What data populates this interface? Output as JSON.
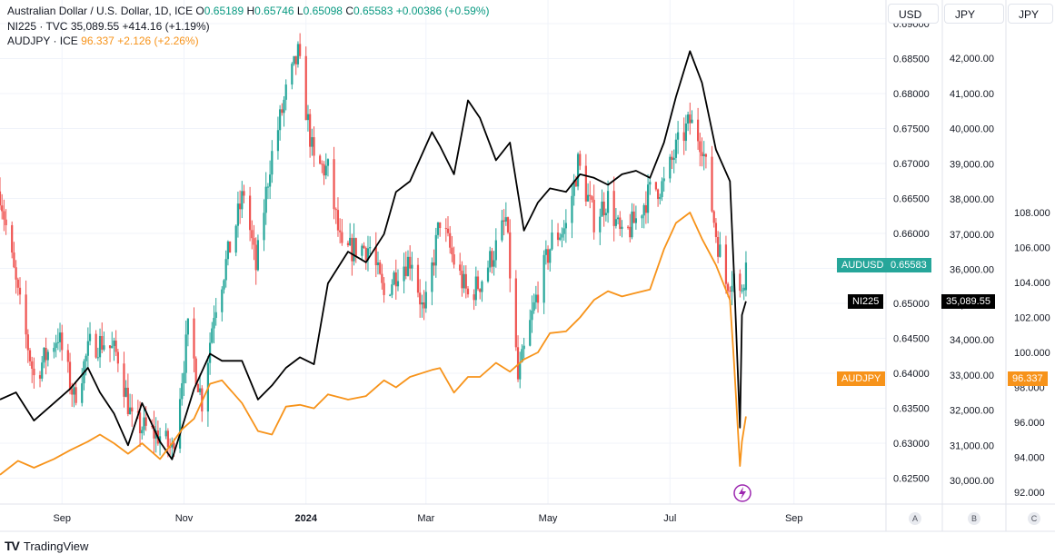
{
  "legend": {
    "main": {
      "name": "Australian Dollar / U.S. Dollar, 1D, ICE",
      "o_label": "O",
      "o": "0.65189",
      "h_label": "H",
      "h": "0.65746",
      "l_label": "L",
      "l": "0.65098",
      "c_label": "C",
      "c": "0.65583",
      "chg": "+0.00386 (+0.59%)"
    },
    "s2": {
      "name": "NI225 · TVC",
      "value": "35,089.55",
      "chg": "+414.16 (+1.19%)"
    },
    "s3": {
      "name": "AUDJPY · ICE",
      "value": "96.337",
      "chg": "+2.126 (+2.26%)"
    }
  },
  "axes": {
    "usd_label": "USD",
    "jpy1_label": "JPY",
    "jpy2_label": "JPY",
    "scale_buttons": [
      "A",
      "B",
      "C"
    ]
  },
  "badges": {
    "audusd_name": "AUDUSD",
    "audusd_value": "0.65583",
    "ni225_name": "NI225",
    "ni225_value": "35,089.55",
    "audjpy_name": "AUDJPY",
    "audjpy_value": "96.337"
  },
  "footer": {
    "logo": "TV",
    "brand": "TradingView"
  },
  "colors": {
    "up": "#26a69a",
    "down": "#ef5350",
    "ni225": "#000000",
    "audjpy": "#f7931a",
    "grid": "#f0f3fa",
    "accent": "#9c27b0"
  },
  "chart_data": {
    "type": "candlestick+line",
    "title": "Australian Dollar / U.S. Dollar, 1D, ICE",
    "x_ticks": [
      "Sep",
      "Nov",
      "2024",
      "Mar",
      "May",
      "Jul",
      "Sep"
    ],
    "x_tick_dates": [
      "2023-09-01",
      "2023-11-01",
      "2024-01-01",
      "2024-03-01",
      "2024-05-01",
      "2024-07-01",
      "2024-09-01"
    ],
    "x_range": [
      "2023-08-01",
      "2024-10-17"
    ],
    "y_axis_usd": {
      "ticks": [
        0.625,
        0.63,
        0.635,
        0.64,
        0.645,
        0.65,
        0.655,
        0.66,
        0.665,
        0.67,
        0.675,
        0.68,
        0.685,
        0.69
      ],
      "labels": [
        "0.62500",
        "0.63000",
        "0.63500",
        "0.64000",
        "0.64500",
        "0.65000",
        "0.65500",
        "0.66000",
        "0.66500",
        "0.67000",
        "0.67500",
        "0.68000",
        "0.68500",
        "0.69000"
      ]
    },
    "y_axis_nikkei": {
      "ticks": [
        30000,
        31000,
        32000,
        33000,
        34000,
        35000,
        36000,
        37000,
        38000,
        39000,
        40000,
        41000,
        42000
      ],
      "labels": [
        "30,000.00",
        "31,000.00",
        "32,000.00",
        "33,000.00",
        "34,000.00",
        "35,000.00",
        "36,000.00",
        "37,000.00",
        "38,000.00",
        "39,000.00",
        "40,000.00",
        "41,000.00",
        "42,000.00"
      ]
    },
    "y_axis_jpy": {
      "ticks": [
        92,
        94,
        96,
        98,
        100,
        102,
        104,
        106,
        108
      ],
      "labels": [
        "92.000",
        "94.000",
        "96.000",
        "98.000",
        "100.000",
        "102.000",
        "104.000",
        "106.000",
        "108.000"
      ]
    },
    "audusd_anchors": [
      [
        "2023-08-01",
        0.666
      ],
      [
        "2023-08-10",
        0.651
      ],
      [
        "2023-08-18",
        0.6395
      ],
      [
        "2023-08-30",
        0.6455
      ],
      [
        "2023-09-07",
        0.6365
      ],
      [
        "2023-09-15",
        0.644
      ],
      [
        "2023-09-22",
        0.6445
      ],
      [
        "2023-09-29",
        0.6425
      ],
      [
        "2023-10-06",
        0.633
      ],
      [
        "2023-10-13",
        0.632
      ],
      [
        "2023-10-20",
        0.631
      ],
      [
        "2023-10-26",
        0.629
      ],
      [
        "2023-11-03",
        0.646
      ],
      [
        "2023-11-10",
        0.636
      ],
      [
        "2023-11-16",
        0.649
      ],
      [
        "2023-11-24",
        0.658
      ],
      [
        "2023-12-01",
        0.666
      ],
      [
        "2023-12-07",
        0.655
      ],
      [
        "2023-12-14",
        0.67
      ],
      [
        "2023-12-22",
        0.68
      ],
      [
        "2023-12-28",
        0.6855
      ],
      [
        "2024-01-05",
        0.67
      ],
      [
        "2024-01-12",
        0.669
      ],
      [
        "2024-01-19",
        0.657
      ],
      [
        "2024-01-26",
        0.658
      ],
      [
        "2024-02-02",
        0.658
      ],
      [
        "2024-02-09",
        0.651
      ],
      [
        "2024-02-16",
        0.655
      ],
      [
        "2024-02-23",
        0.6565
      ],
      [
        "2024-02-29",
        0.648
      ],
      [
        "2024-03-08",
        0.662
      ],
      [
        "2024-03-15",
        0.656
      ],
      [
        "2024-03-22",
        0.651
      ],
      [
        "2024-03-28",
        0.653
      ],
      [
        "2024-04-05",
        0.658
      ],
      [
        "2024-04-10",
        0.662
      ],
      [
        "2024-04-16",
        0.639
      ],
      [
        "2024-04-19",
        0.643
      ],
      [
        "2024-04-26",
        0.652
      ],
      [
        "2024-05-03",
        0.659
      ],
      [
        "2024-05-10",
        0.661
      ],
      [
        "2024-05-16",
        0.67
      ],
      [
        "2024-05-24",
        0.662
      ],
      [
        "2024-05-31",
        0.665
      ],
      [
        "2024-06-07",
        0.659
      ],
      [
        "2024-06-14",
        0.662
      ],
      [
        "2024-06-21",
        0.666
      ],
      [
        "2024-06-28",
        0.667
      ],
      [
        "2024-07-04",
        0.672
      ],
      [
        "2024-07-11",
        0.676
      ],
      [
        "2024-07-17",
        0.673
      ],
      [
        "2024-07-24",
        0.66
      ],
      [
        "2024-07-29",
        0.653
      ],
      [
        "2024-08-02",
        0.654
      ],
      [
        "2024-08-05",
        0.651
      ],
      [
        "2024-08-08",
        0.6558
      ]
    ],
    "series": [
      {
        "name": "NI225",
        "axis": "nikkei",
        "x": [
          "2023-08-01",
          "2023-08-09",
          "2023-08-18",
          "2023-08-28",
          "2023-09-05",
          "2023-09-14",
          "2023-09-20",
          "2023-09-27",
          "2023-10-04",
          "2023-10-11",
          "2023-10-20",
          "2023-10-26",
          "2023-10-31",
          "2023-11-06",
          "2023-11-14",
          "2023-11-20",
          "2023-11-30",
          "2023-12-08",
          "2023-12-15",
          "2023-12-22",
          "2023-12-29",
          "2024-01-05",
          "2024-01-12",
          "2024-01-22",
          "2024-01-31",
          "2024-02-09",
          "2024-02-15",
          "2024-02-22",
          "2024-03-04",
          "2024-03-08",
          "2024-03-15",
          "2024-03-22",
          "2024-03-28",
          "2024-04-05",
          "2024-04-12",
          "2024-04-19",
          "2024-04-26",
          "2024-05-02",
          "2024-05-10",
          "2024-05-17",
          "2024-05-24",
          "2024-05-31",
          "2024-06-07",
          "2024-06-14",
          "2024-06-21",
          "2024-06-28",
          "2024-07-04",
          "2024-07-11",
          "2024-07-17",
          "2024-07-24",
          "2024-07-31",
          "2024-08-02",
          "2024-08-05",
          "2024-08-06",
          "2024-08-08"
        ],
        "values": [
          32300,
          32500,
          31700,
          32200,
          32600,
          33200,
          32500,
          31900,
          31000,
          32200,
          31100,
          30600,
          31500,
          32600,
          33600,
          33400,
          33400,
          32300,
          32700,
          33200,
          33500,
          33300,
          35600,
          36500,
          36200,
          37000,
          38200,
          38500,
          39900,
          39500,
          38700,
          40800,
          40300,
          39100,
          39600,
          37100,
          37900,
          38300,
          38200,
          38700,
          38600,
          38400,
          38700,
          38800,
          38600,
          39600,
          40900,
          42200,
          41300,
          39400,
          38500,
          35900,
          31500,
          34700,
          35089.55
        ]
      },
      {
        "name": "AUDJPY",
        "axis": "jpy",
        "x": [
          "2023-08-01",
          "2023-08-10",
          "2023-08-18",
          "2023-08-28",
          "2023-09-05",
          "2023-09-14",
          "2023-09-20",
          "2023-09-27",
          "2023-10-04",
          "2023-10-11",
          "2023-10-20",
          "2023-10-26",
          "2023-10-31",
          "2023-11-06",
          "2023-11-14",
          "2023-11-20",
          "2023-11-30",
          "2023-12-08",
          "2023-12-15",
          "2023-12-22",
          "2023-12-29",
          "2024-01-05",
          "2024-01-12",
          "2024-01-22",
          "2024-01-31",
          "2024-02-09",
          "2024-02-15",
          "2024-02-22",
          "2024-03-04",
          "2024-03-08",
          "2024-03-15",
          "2024-03-22",
          "2024-03-28",
          "2024-04-05",
          "2024-04-12",
          "2024-04-19",
          "2024-04-26",
          "2024-05-02",
          "2024-05-10",
          "2024-05-17",
          "2024-05-24",
          "2024-05-31",
          "2024-06-07",
          "2024-06-14",
          "2024-06-21",
          "2024-06-28",
          "2024-07-04",
          "2024-07-11",
          "2024-07-17",
          "2024-07-24",
          "2024-07-31",
          "2024-08-02",
          "2024-08-05",
          "2024-08-06",
          "2024-08-08"
        ],
        "values": [
          93.0,
          93.8,
          93.4,
          93.9,
          94.4,
          94.9,
          95.3,
          94.8,
          94.2,
          94.8,
          93.9,
          94.8,
          95.6,
          96.2,
          98.2,
          98.4,
          97.1,
          95.5,
          95.3,
          96.9,
          97.0,
          96.8,
          97.6,
          97.3,
          97.5,
          98.4,
          98.0,
          98.6,
          99.0,
          99.1,
          97.7,
          98.6,
          98.6,
          99.4,
          98.9,
          99.6,
          100.0,
          101.1,
          101.2,
          102.0,
          103.0,
          103.5,
          103.2,
          103.4,
          103.6,
          105.9,
          107.4,
          108.0,
          106.5,
          105.0,
          103.0,
          99.5,
          93.5,
          94.9,
          96.337
        ]
      }
    ],
    "last_values": {
      "AUDUSD": 0.65583,
      "NI225": 35089.55,
      "AUDJPY": 96.337
    }
  }
}
